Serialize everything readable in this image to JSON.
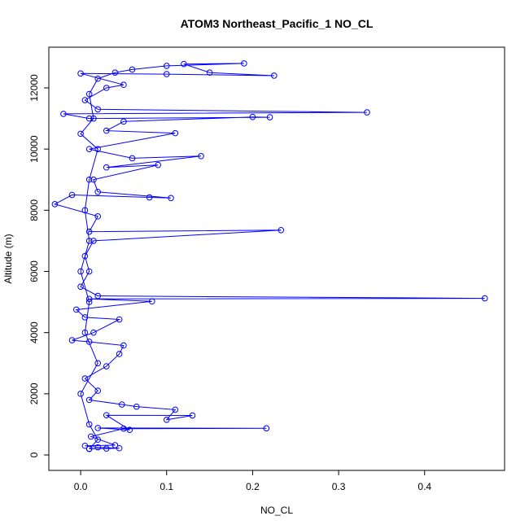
{
  "chart_data": {
    "type": "line",
    "title": "ATOM3 Northeast_Pacific_1 NO_CL",
    "x_label": "NO_CL",
    "y_label": "Altitude (m)",
    "x": [
      0.01,
      0.03,
      0.045,
      0.02,
      0.005,
      0.04,
      0.012,
      0.05,
      0.216,
      0.02,
      0.057,
      0.03,
      0.13,
      0.1,
      0.11,
      0.065,
      0.048,
      0.01,
      0.02,
      0.005,
      0.03,
      0.045,
      0.05,
      0.01,
      -0.01,
      0.015,
      0.045,
      0.005,
      -0.005,
      0.083,
      0.01,
      0.47,
      0.02,
      0.0,
      0.01,
      0.005,
      0.015,
      0.233,
      0.01,
      0.02,
      -0.03,
      -0.01,
      0.08,
      0.105,
      0.02,
      0.015,
      0.09,
      0.03,
      0.14,
      0.06,
      0.01,
      0.11,
      0.03,
      0.05,
      0.2,
      0.22,
      0.01,
      -0.02,
      0.333,
      0.02,
      0.005,
      0.03,
      0.05,
      0.0,
      0.1,
      0.225,
      0.15,
      0.12,
      0.19,
      0.1,
      0.06,
      0.04,
      0.02,
      0.01,
      0.015,
      0.0,
      0.02,
      0.01,
      0.005,
      0.01,
      0.0,
      0.01,
      0.005,
      0.02,
      0.0,
      0.01,
      0.02,
      0.01
    ],
    "series": [
      {
        "name": "NO_CL",
        "color": "#0000ff",
        "values": [
          200,
          210,
          220,
          250,
          300,
          320,
          600,
          860,
          870,
          880,
          820,
          1300,
          1290,
          1150,
          1480,
          1580,
          1650,
          1800,
          2100,
          2500,
          2900,
          3300,
          3580,
          3700,
          3750,
          4000,
          4430,
          4500,
          4750,
          5020,
          5100,
          5120,
          5200,
          5500,
          6000,
          6500,
          7000,
          7350,
          7300,
          7800,
          8200,
          8500,
          8420,
          8400,
          8600,
          9000,
          9480,
          9400,
          9770,
          9700,
          10000,
          10520,
          10600,
          10900,
          11050,
          11040,
          11000,
          11150,
          11200,
          11300,
          11600,
          12000,
          12100,
          12470,
          12450,
          12400,
          12500,
          12780,
          12800,
          12720,
          12600,
          12500,
          12300,
          11800,
          11000,
          10500,
          10000,
          9000,
          8000,
          7000,
          6000,
          5000,
          4000,
          3000,
          2000,
          1000,
          500,
          200
        ]
      }
    ],
    "xlim": [
      -0.037,
      0.493
    ],
    "ylim": [
      -505,
      13330
    ],
    "xticks": [
      {
        "value": 0,
        "label": "0.0"
      },
      {
        "value": 0.1,
        "label": "0.1"
      },
      {
        "value": 0.2,
        "label": "0.2"
      },
      {
        "value": 0.3,
        "label": "0.3"
      },
      {
        "value": 0.4,
        "label": "0.4"
      }
    ],
    "yticks": [
      0,
      2000,
      4000,
      6000,
      8000,
      10000,
      12000
    ]
  }
}
